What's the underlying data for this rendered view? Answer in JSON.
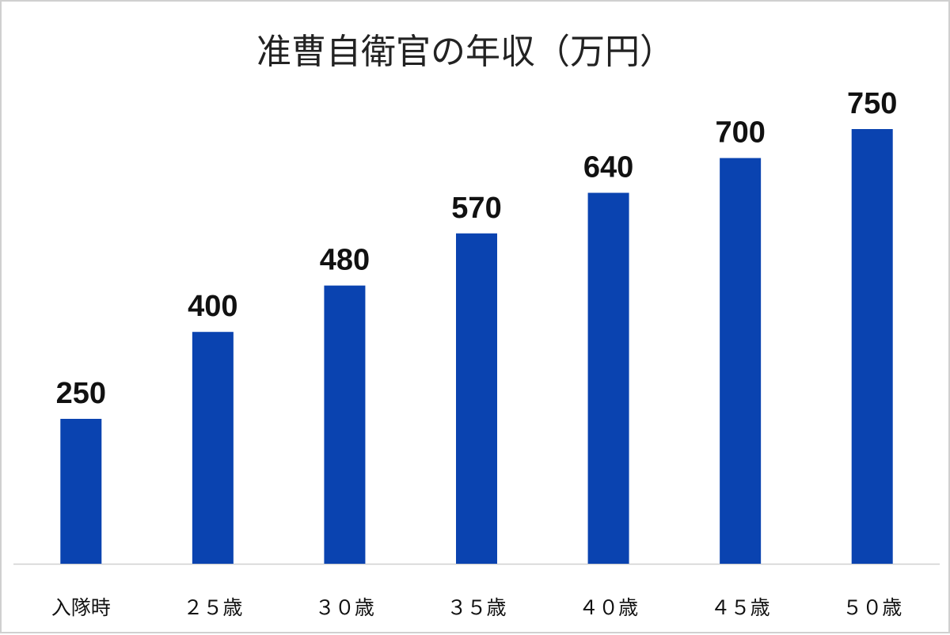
{
  "chart_data": {
    "type": "bar",
    "title": "准曹自衛官の年収（万円）",
    "categories": [
      "入隊時",
      "２５歳",
      "３０歳",
      "３５歳",
      "４０歳",
      "４５歳",
      "５０歳"
    ],
    "values": [
      250,
      400,
      480,
      570,
      640,
      700,
      750
    ],
    "xlabel": "",
    "ylabel": "",
    "ylim": [
      0,
      800
    ],
    "grid": false,
    "data_labels": true,
    "bar_color": "#0a43b0",
    "axis_color": "#d0d0d0"
  }
}
